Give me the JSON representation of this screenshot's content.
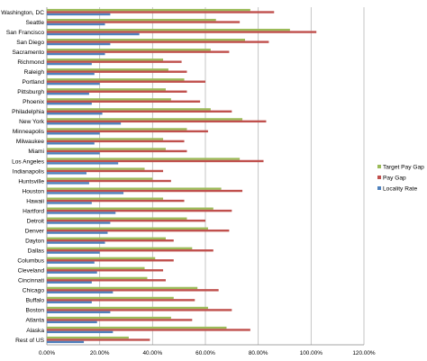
{
  "chart_data": {
    "type": "bar",
    "orientation": "horizontal",
    "title": "",
    "xlabel": "",
    "ylabel": "",
    "xlim": [
      0,
      120
    ],
    "x_ticks": [
      "0.00%",
      "20.00%",
      "40.00%",
      "60.00%",
      "80.00%",
      "100.00%",
      "120.00%"
    ],
    "grid": "vertical",
    "legend_position": "right",
    "categories": [
      "Washington, DC",
      "Seattle",
      "San Francisco",
      "San Diego",
      "Sacramento",
      "Richmond",
      "Raleigh",
      "Portland",
      "Pittsburgh",
      "Phoenix",
      "Philadelphia",
      "New York",
      "Minneapolis",
      "Milwaukee",
      "Miami",
      "Los Angeles",
      "Indianapolis",
      "Huntsville",
      "Houston",
      "Hawaii",
      "Hartford",
      "Detroit",
      "Denver",
      "Dayton",
      "Dallas",
      "Columbus",
      "Cleveland",
      "Cincinnati",
      "Chicago",
      "Buffalo",
      "Boston",
      "Atlanta",
      "Alaska",
      "Rest of US"
    ],
    "series": [
      {
        "name": "Target Pay Gap",
        "color": "#9bbb59",
        "values": [
          77,
          64,
          92,
          75,
          62,
          44,
          46,
          52,
          45,
          47,
          62,
          74,
          53,
          44,
          45,
          73,
          37,
          40,
          66,
          44,
          63,
          53,
          61,
          45,
          55,
          41,
          37,
          38,
          57,
          48,
          61,
          47,
          68,
          31
        ]
      },
      {
        "name": "Pay Gap",
        "color": "#c0504d",
        "values": [
          86,
          73,
          102,
          84,
          69,
          51,
          53,
          60,
          53,
          58,
          70,
          83,
          61,
          52,
          53,
          82,
          44,
          47,
          74,
          52,
          70,
          60,
          69,
          48,
          63,
          48,
          44,
          45,
          65,
          56,
          70,
          55,
          77,
          39
        ]
      },
      {
        "name": "Locality Rate",
        "color": "#4f81bd",
        "values": [
          24,
          22,
          35,
          24,
          22,
          17,
          18,
          20,
          16,
          17,
          21,
          28,
          20,
          18,
          20,
          27,
          15,
          16,
          29,
          17,
          26,
          24,
          23,
          22,
          20,
          18,
          19,
          17,
          25,
          17,
          24,
          19,
          25,
          14
        ]
      }
    ]
  }
}
